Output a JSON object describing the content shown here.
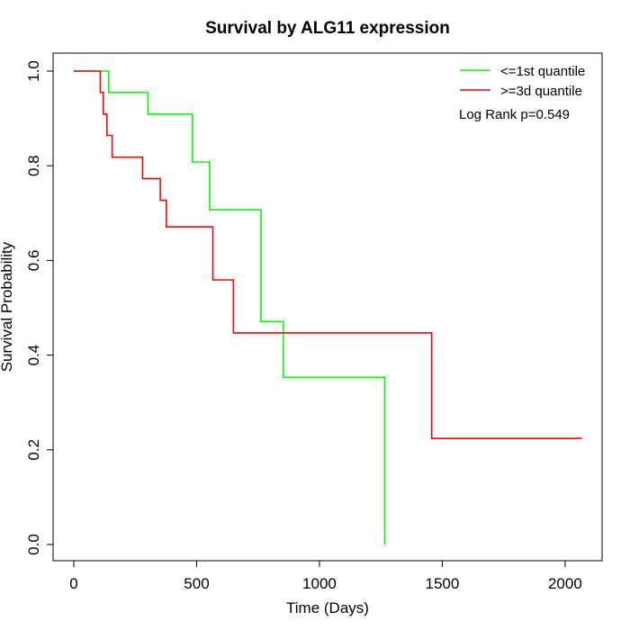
{
  "chart_data": {
    "type": "line",
    "subtype": "kaplan-meier step plot",
    "title": "Survival by ALG11 expression",
    "xlabel": "Time (Days)",
    "ylabel": "Survival Probability",
    "xlim": [
      0,
      2070
    ],
    "ylim": [
      0,
      1
    ],
    "xticks": [
      0,
      500,
      1000,
      1500,
      2000
    ],
    "xtick_labels": [
      "0",
      "500",
      "1000",
      "1500",
      "2000"
    ],
    "yticks": [
      0.0,
      0.2,
      0.4,
      0.6,
      0.8,
      1.0
    ],
    "ytick_labels": [
      "0.0",
      "0.2",
      "0.4",
      "0.6",
      "0.8",
      "1.0"
    ],
    "grid": false,
    "legend_position": "top-right",
    "annotation": "Log Rank p=0.549",
    "series": [
      {
        "name": "<=1st quantile",
        "color": "#00ff00",
        "points": [
          [
            0,
            1.0
          ],
          [
            142,
            1.0
          ],
          [
            142,
            0.955
          ],
          [
            302,
            0.955
          ],
          [
            302,
            0.909
          ],
          [
            483,
            0.909
          ],
          [
            483,
            0.808
          ],
          [
            553,
            0.808
          ],
          [
            553,
            0.707
          ],
          [
            762,
            0.707
          ],
          [
            762,
            0.471
          ],
          [
            853,
            0.471
          ],
          [
            853,
            0.353
          ],
          [
            1266,
            0.353
          ],
          [
            1266,
            0.0
          ]
        ]
      },
      {
        "name": ">=3d quantile",
        "color": "#ff0000",
        "points": [
          [
            0,
            1.0
          ],
          [
            108,
            1.0
          ],
          [
            108,
            0.955
          ],
          [
            120,
            0.955
          ],
          [
            120,
            0.909
          ],
          [
            135,
            0.909
          ],
          [
            135,
            0.864
          ],
          [
            156,
            0.864
          ],
          [
            156,
            0.818
          ],
          [
            280,
            0.818
          ],
          [
            280,
            0.773
          ],
          [
            352,
            0.773
          ],
          [
            352,
            0.727
          ],
          [
            377,
            0.727
          ],
          [
            377,
            0.671
          ],
          [
            566,
            0.671
          ],
          [
            566,
            0.559
          ],
          [
            650,
            0.559
          ],
          [
            650,
            0.447
          ],
          [
            1457,
            0.447
          ],
          [
            1457,
            0.224
          ],
          [
            2068,
            0.224
          ]
        ]
      }
    ]
  }
}
